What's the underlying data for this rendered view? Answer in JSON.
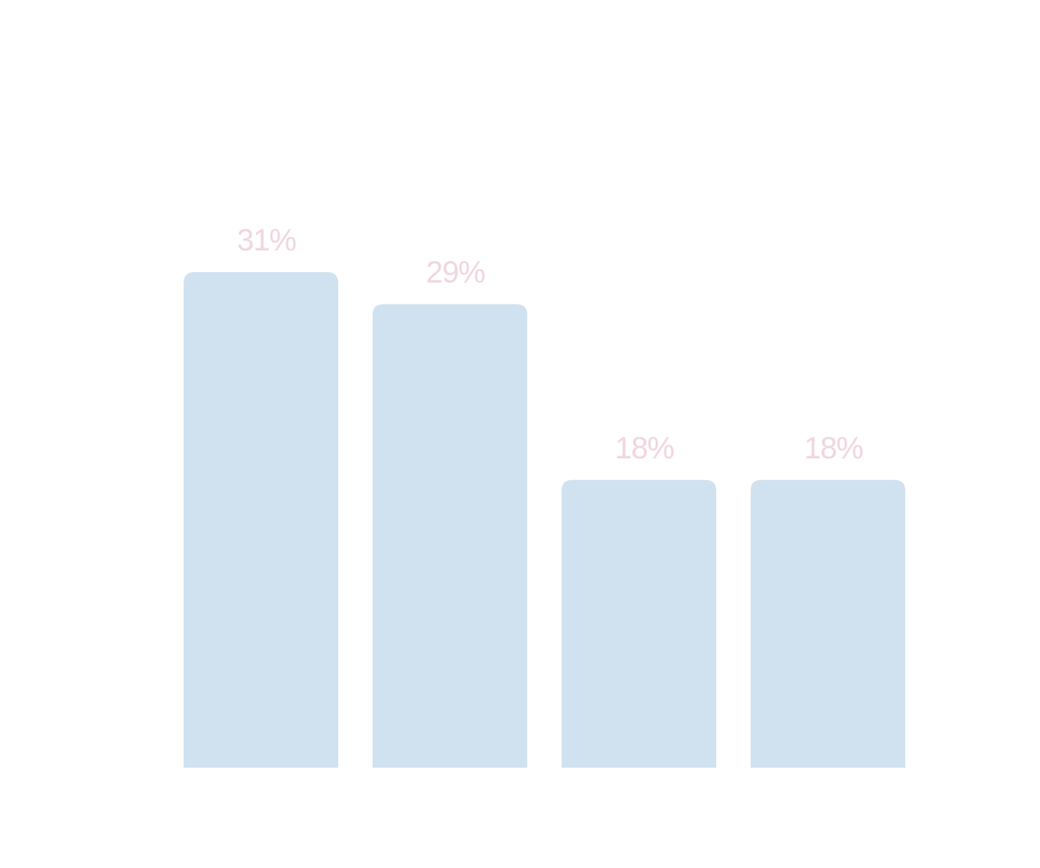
{
  "colors": {
    "background": "#ffffff",
    "bar": "#d0e2ef",
    "label": "#f0d6de"
  },
  "chart_data": {
    "type": "bar",
    "categories": [
      "",
      "",
      "",
      ""
    ],
    "values": [
      31,
      29,
      18,
      18
    ],
    "data_labels": [
      "31%",
      "29%",
      "18%",
      "18%"
    ],
    "title": "",
    "xlabel": "",
    "ylabel": "",
    "unit": "%",
    "ylim": [
      0,
      31
    ],
    "grid": false,
    "legend": "none"
  }
}
